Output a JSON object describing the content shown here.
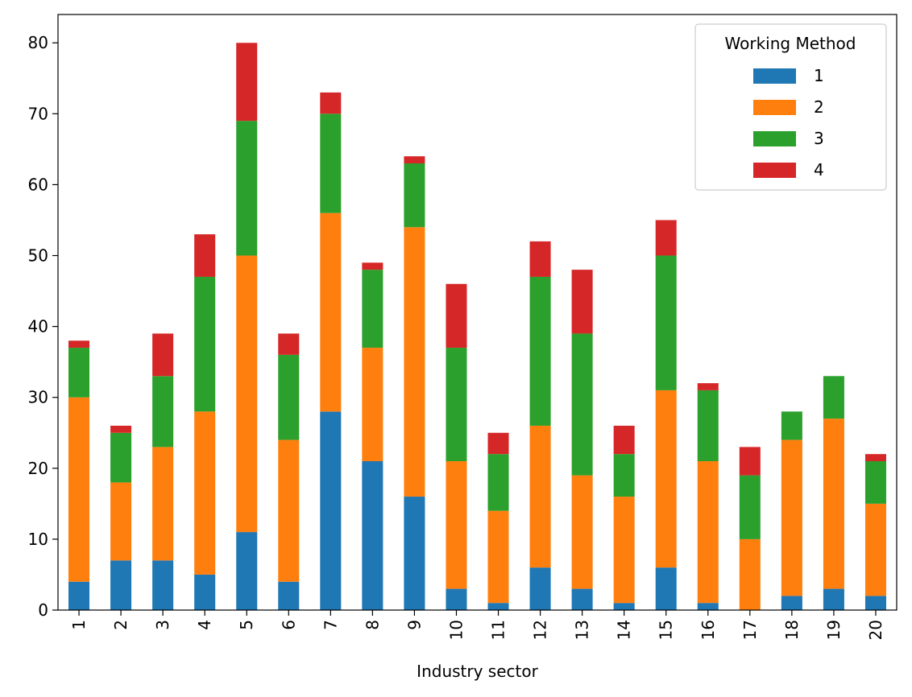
{
  "chart_data": {
    "type": "bar",
    "stacked": true,
    "categories": [
      "1",
      "2",
      "3",
      "4",
      "5",
      "6",
      "7",
      "8",
      "9",
      "10",
      "11",
      "12",
      "13",
      "14",
      "15",
      "16",
      "17",
      "18",
      "19",
      "20"
    ],
    "series": [
      {
        "name": "1",
        "color": "#1f77b4",
        "values": [
          4,
          7,
          7,
          5,
          11,
          4,
          28,
          21,
          16,
          3,
          1,
          6,
          3,
          1,
          6,
          1,
          0,
          2,
          3,
          2
        ]
      },
      {
        "name": "2",
        "color": "#ff7f0e",
        "values": [
          26,
          11,
          16,
          23,
          39,
          20,
          28,
          16,
          38,
          18,
          13,
          20,
          16,
          15,
          25,
          20,
          10,
          22,
          24,
          13
        ]
      },
      {
        "name": "3",
        "color": "#2ca02c",
        "values": [
          7,
          7,
          10,
          19,
          19,
          12,
          14,
          11,
          9,
          16,
          8,
          21,
          20,
          6,
          19,
          10,
          9,
          4,
          6,
          6
        ]
      },
      {
        "name": "4",
        "color": "#d62728",
        "values": [
          1,
          1,
          6,
          6,
          11,
          3,
          3,
          1,
          1,
          9,
          3,
          5,
          9,
          4,
          5,
          1,
          4,
          0,
          0,
          1
        ]
      }
    ],
    "xlabel": "Industry sector",
    "ylabel": "",
    "ylim": [
      0,
      84
    ],
    "yticks": [
      0,
      10,
      20,
      30,
      40,
      50,
      60,
      70,
      80
    ],
    "legend": {
      "title": "Working Method",
      "placement": "top-right"
    },
    "grid": false
  }
}
